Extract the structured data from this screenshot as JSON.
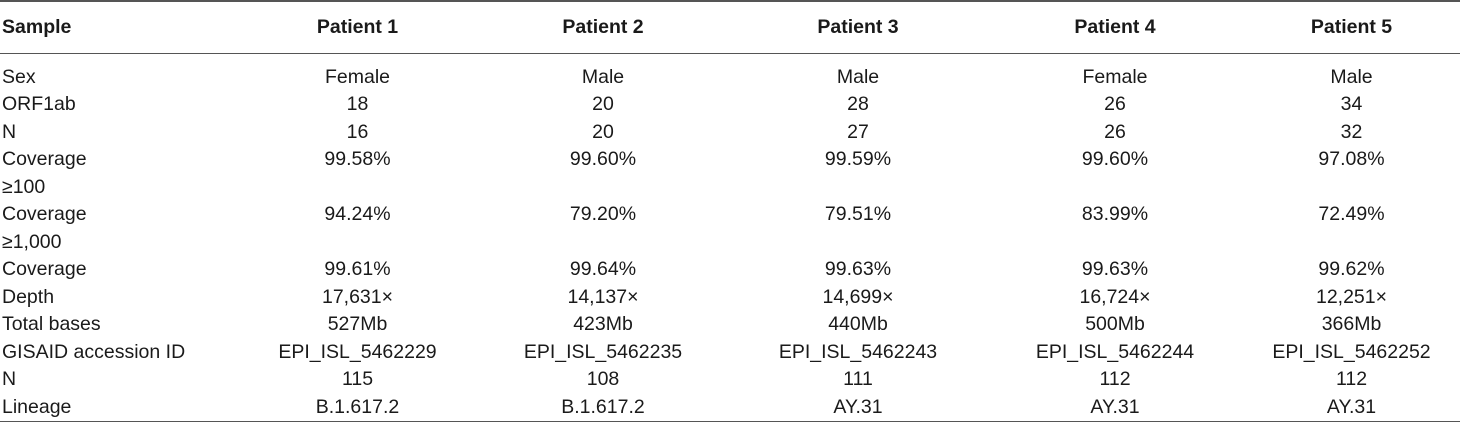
{
  "table": {
    "headers": [
      "Sample",
      "Patient 1",
      "Patient 2",
      "Patient 3",
      "Patient 4",
      "Patient 5"
    ],
    "rows": [
      {
        "label": [
          "Sex"
        ],
        "values": [
          "Female",
          "Male",
          "Male",
          "Female",
          "Male"
        ]
      },
      {
        "label": [
          "ORF1ab"
        ],
        "values": [
          "18",
          "20",
          "28",
          "26",
          "34"
        ]
      },
      {
        "label": [
          "N"
        ],
        "values": [
          "16",
          "20",
          "27",
          "26",
          "32"
        ]
      },
      {
        "label": [
          "Coverage",
          "≥100"
        ],
        "values": [
          "99.58%",
          "99.60%",
          "99.59%",
          "99.60%",
          "97.08%"
        ]
      },
      {
        "label": [
          "Coverage",
          "≥1,000"
        ],
        "values": [
          "94.24%",
          "79.20%",
          "79.51%",
          "83.99%",
          "72.49%"
        ]
      },
      {
        "label": [
          "Coverage"
        ],
        "values": [
          "99.61%",
          "99.64%",
          "99.63%",
          "99.63%",
          "99.62%"
        ]
      },
      {
        "label": [
          "Depth"
        ],
        "values": [
          "17,631×",
          "14,137×",
          "14,699×",
          "16,724×",
          "12,251×"
        ]
      },
      {
        "label": [
          "Total bases"
        ],
        "values": [
          "527Mb",
          "423Mb",
          "440Mb",
          "500Mb",
          "366Mb"
        ]
      },
      {
        "label": [
          "GISAID accession ID"
        ],
        "values": [
          "EPI_ISL_5462229",
          "EPI_ISL_5462235",
          "EPI_ISL_5462243",
          "EPI_ISL_5462244",
          "EPI_ISL_5462252"
        ]
      },
      {
        "label": [
          "N"
        ],
        "values": [
          "115",
          "108",
          "111",
          "112",
          "112"
        ]
      },
      {
        "label": [
          "Lineage"
        ],
        "values": [
          "B.1.617.2",
          "B.1.617.2",
          "AY.31",
          "AY.31",
          "AY.31"
        ]
      }
    ]
  }
}
